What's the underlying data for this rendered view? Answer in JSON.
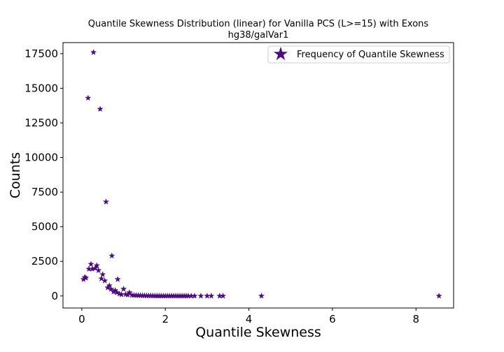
{
  "chart_data": {
    "type": "scatter",
    "title": "Quantile Skewness Distribution (linear) for Vanilla PCS (L>=15) with Exons",
    "subtitle": "hg38/galVar1",
    "xlabel": "Quantile Skewness",
    "ylabel": "Counts",
    "xlim": [
      -0.45,
      8.9
    ],
    "ylim": [
      -870,
      18300
    ],
    "xticks": [
      0,
      2,
      4,
      6,
      8
    ],
    "xtick_labels": [
      "0",
      "2",
      "4",
      "6",
      "8"
    ],
    "yticks": [
      0,
      2500,
      5000,
      7500,
      10000,
      12500,
      15000,
      17500
    ],
    "ytick_labels": [
      "0",
      "2500",
      "5000",
      "7500",
      "10000",
      "12500",
      "15000",
      "17500"
    ],
    "grid": false,
    "legend_position": "upper right",
    "marker": "star",
    "color": "#4b0c7f",
    "series": [
      {
        "name": "Frequency of Quantile Skewness",
        "points": [
          {
            "x": 0.04,
            "y": 1200
          },
          {
            "x": 0.07,
            "y": 1350
          },
          {
            "x": 0.1,
            "y": 1300
          },
          {
            "x": 0.15,
            "y": 14300
          },
          {
            "x": 0.17,
            "y": 1950
          },
          {
            "x": 0.22,
            "y": 2300
          },
          {
            "x": 0.25,
            "y": 1950
          },
          {
            "x": 0.28,
            "y": 17600
          },
          {
            "x": 0.32,
            "y": 2000
          },
          {
            "x": 0.36,
            "y": 2200
          },
          {
            "x": 0.4,
            "y": 1850
          },
          {
            "x": 0.44,
            "y": 13500
          },
          {
            "x": 0.47,
            "y": 1250
          },
          {
            "x": 0.5,
            "y": 1550
          },
          {
            "x": 0.55,
            "y": 1100
          },
          {
            "x": 0.58,
            "y": 6800
          },
          {
            "x": 0.62,
            "y": 600
          },
          {
            "x": 0.66,
            "y": 750
          },
          {
            "x": 0.7,
            "y": 500
          },
          {
            "x": 0.72,
            "y": 2900
          },
          {
            "x": 0.76,
            "y": 300
          },
          {
            "x": 0.8,
            "y": 400
          },
          {
            "x": 0.84,
            "y": 250
          },
          {
            "x": 0.86,
            "y": 1200
          },
          {
            "x": 0.9,
            "y": 150
          },
          {
            "x": 0.95,
            "y": 100
          },
          {
            "x": 1.0,
            "y": 500
          },
          {
            "x": 1.05,
            "y": 120
          },
          {
            "x": 1.1,
            "y": 80
          },
          {
            "x": 1.14,
            "y": 250
          },
          {
            "x": 1.2,
            "y": 60
          },
          {
            "x": 1.25,
            "y": 50
          },
          {
            "x": 1.3,
            "y": 45
          },
          {
            "x": 1.35,
            "y": 40
          },
          {
            "x": 1.4,
            "y": 35
          },
          {
            "x": 1.45,
            "y": 30
          },
          {
            "x": 1.5,
            "y": 25
          },
          {
            "x": 1.55,
            "y": 20
          },
          {
            "x": 1.6,
            "y": 18
          },
          {
            "x": 1.65,
            "y": 15
          },
          {
            "x": 1.7,
            "y": 12
          },
          {
            "x": 1.75,
            "y": 10
          },
          {
            "x": 1.8,
            "y": 8
          },
          {
            "x": 1.85,
            "y": 7
          },
          {
            "x": 1.9,
            "y": 6
          },
          {
            "x": 1.95,
            "y": 5
          },
          {
            "x": 2.0,
            "y": 5
          },
          {
            "x": 2.05,
            "y": 4
          },
          {
            "x": 2.1,
            "y": 4
          },
          {
            "x": 2.15,
            "y": 3
          },
          {
            "x": 2.2,
            "y": 3
          },
          {
            "x": 2.25,
            "y": 3
          },
          {
            "x": 2.3,
            "y": 2
          },
          {
            "x": 2.35,
            "y": 2
          },
          {
            "x": 2.4,
            "y": 2
          },
          {
            "x": 2.45,
            "y": 2
          },
          {
            "x": 2.5,
            "y": 1
          },
          {
            "x": 2.55,
            "y": 1
          },
          {
            "x": 2.62,
            "y": 1
          },
          {
            "x": 2.7,
            "y": 1
          },
          {
            "x": 2.85,
            "y": 1
          },
          {
            "x": 3.0,
            "y": 1
          },
          {
            "x": 3.1,
            "y": 1
          },
          {
            "x": 3.3,
            "y": 1
          },
          {
            "x": 3.38,
            "y": 1
          },
          {
            "x": 4.3,
            "y": 1
          },
          {
            "x": 8.55,
            "y": 1
          }
        ]
      }
    ]
  }
}
